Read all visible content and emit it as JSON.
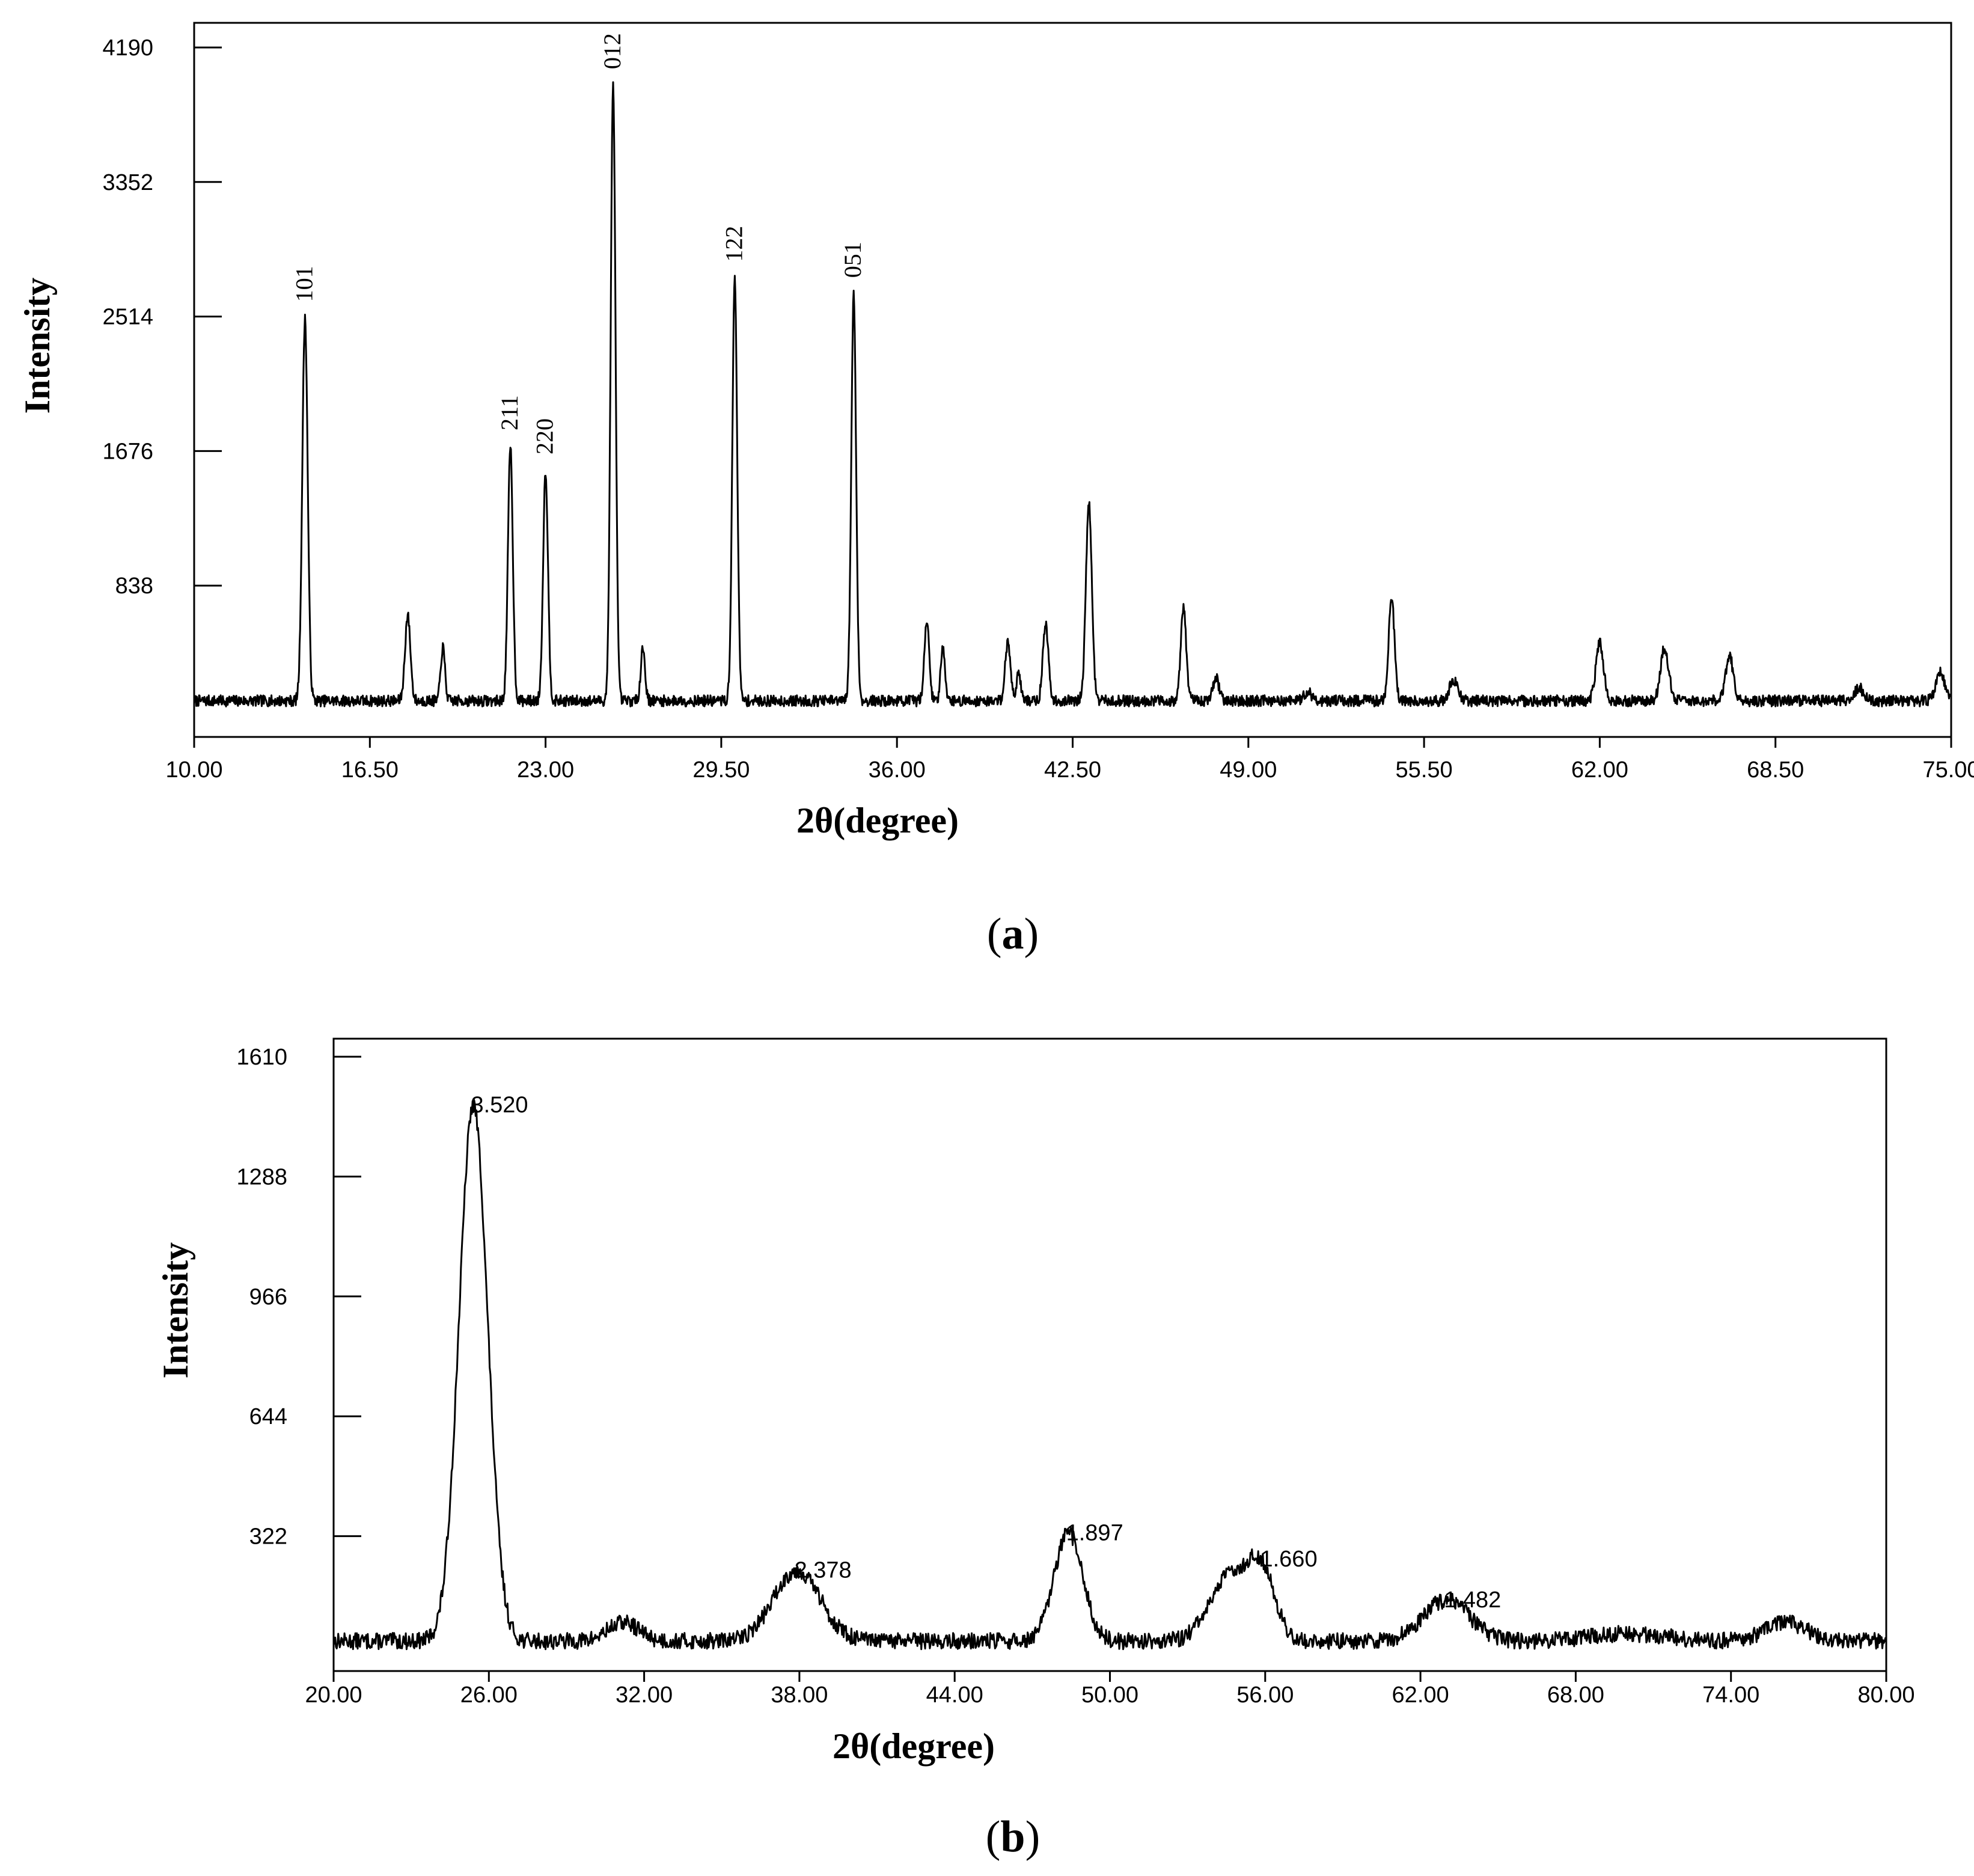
{
  "chart_data": [
    {
      "type": "line",
      "panel_label": {
        "open": "(",
        "letter": "a",
        "close": ")"
      },
      "xlabel": "2θ(degree)",
      "ylabel": "Intensity",
      "xlim": [
        10,
        75
      ],
      "ylim": [
        0,
        4190
      ],
      "x_ticks": [
        "10.00",
        "16.50",
        "23.00",
        "29.50",
        "36.00",
        "42.50",
        "49.00",
        "55.50",
        "62.00",
        "68.50",
        "75.00"
      ],
      "y_ticks": [
        "838",
        "1676",
        "2514",
        "3352",
        "4190"
      ],
      "baseline": 120,
      "peaks": [
        {
          "x": 14.1,
          "y": 2500,
          "w": 0.1
        },
        {
          "x": 17.9,
          "y": 650,
          "w": 0.1
        },
        {
          "x": 19.2,
          "y": 450,
          "w": 0.08
        },
        {
          "x": 21.7,
          "y": 1700,
          "w": 0.09
        },
        {
          "x": 23.0,
          "y": 1550,
          "w": 0.09
        },
        {
          "x": 25.5,
          "y": 3950,
          "w": 0.09
        },
        {
          "x": 26.6,
          "y": 450,
          "w": 0.08
        },
        {
          "x": 30.0,
          "y": 2750,
          "w": 0.09
        },
        {
          "x": 34.4,
          "y": 2650,
          "w": 0.09
        },
        {
          "x": 37.1,
          "y": 620,
          "w": 0.09
        },
        {
          "x": 37.7,
          "y": 460,
          "w": 0.08
        },
        {
          "x": 40.1,
          "y": 480,
          "w": 0.1
        },
        {
          "x": 40.5,
          "y": 300,
          "w": 0.08
        },
        {
          "x": 41.5,
          "y": 600,
          "w": 0.1
        },
        {
          "x": 43.1,
          "y": 1350,
          "w": 0.11
        },
        {
          "x": 46.6,
          "y": 700,
          "w": 0.1
        },
        {
          "x": 47.8,
          "y": 260,
          "w": 0.12
        },
        {
          "x": 51.2,
          "y": 180,
          "w": 0.14
        },
        {
          "x": 54.3,
          "y": 750,
          "w": 0.11
        },
        {
          "x": 56.6,
          "y": 250,
          "w": 0.16
        },
        {
          "x": 62.0,
          "y": 480,
          "w": 0.14
        },
        {
          "x": 64.4,
          "y": 450,
          "w": 0.15
        },
        {
          "x": 66.8,
          "y": 400,
          "w": 0.14
        },
        {
          "x": 71.6,
          "y": 200,
          "w": 0.16
        },
        {
          "x": 74.6,
          "y": 300,
          "w": 0.16
        }
      ],
      "annotations": [
        {
          "text": "101",
          "x": 14.1,
          "y": 2500
        },
        {
          "text": "211",
          "x": 21.7,
          "y": 1700
        },
        {
          "text": "220",
          "x": 23.0,
          "y": 1550
        },
        {
          "text": "012",
          "x": 25.5,
          "y": 3950
        },
        {
          "text": "122",
          "x": 30.0,
          "y": 2750
        },
        {
          "text": "051",
          "x": 34.4,
          "y": 2650
        }
      ]
    },
    {
      "type": "line",
      "panel_label": {
        "open": "(",
        "letter": "b",
        "close": ")"
      },
      "xlabel": "2θ(degree)",
      "ylabel": "Intensity",
      "xlim": [
        20,
        80
      ],
      "ylim": [
        0,
        1610
      ],
      "x_ticks": [
        "20.00",
        "26.00",
        "32.00",
        "38.00",
        "44.00",
        "50.00",
        "56.00",
        "62.00",
        "68.00",
        "74.00",
        "80.00"
      ],
      "y_ticks": [
        "322",
        "644",
        "966",
        "1288",
        "1610"
      ],
      "baseline": 40,
      "peaks": [
        {
          "x": 25.4,
          "y": 1480,
          "w": 0.55
        },
        {
          "x": 31.2,
          "y": 90,
          "w": 0.6
        },
        {
          "x": 37.9,
          "y": 230,
          "w": 0.9
        },
        {
          "x": 48.4,
          "y": 330,
          "w": 0.55
        },
        {
          "x": 54.7,
          "y": 220,
          "w": 0.8
        },
        {
          "x": 55.9,
          "y": 200,
          "w": 0.5
        },
        {
          "x": 63.0,
          "y": 150,
          "w": 0.9
        },
        {
          "x": 70.0,
          "y": 60,
          "w": 1.5
        },
        {
          "x": 76.1,
          "y": 90,
          "w": 0.8
        }
      ],
      "annotations": [
        {
          "text": "3.520",
          "x": 25.4,
          "y": 1480
        },
        {
          "text": "2.378",
          "x": 37.9,
          "y": 230
        },
        {
          "text": "1.897",
          "x": 48.4,
          "y": 330
        },
        {
          "text": "1.660",
          "x": 55.9,
          "y": 260
        },
        {
          "text": "1.482",
          "x": 63.0,
          "y": 150
        }
      ]
    }
  ]
}
